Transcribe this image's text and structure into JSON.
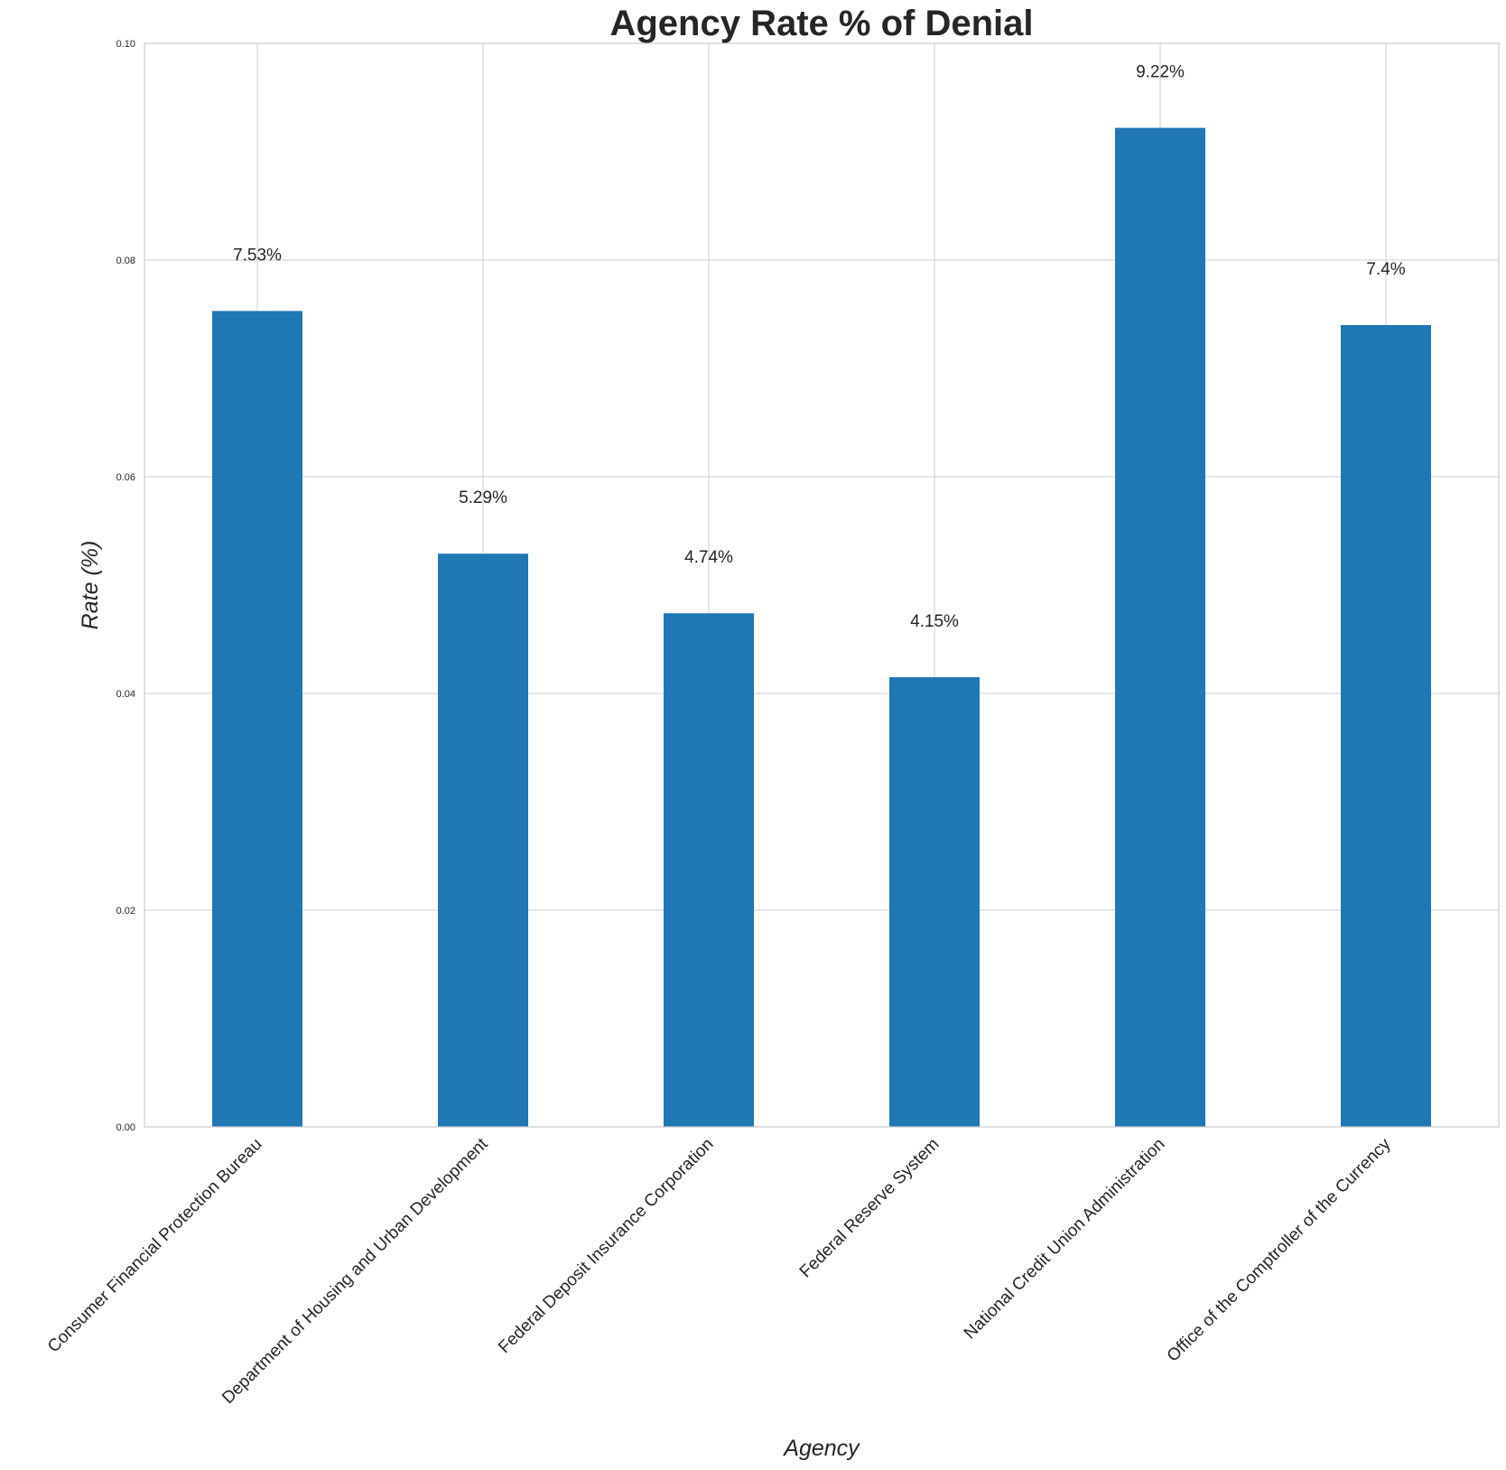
{
  "chart_data": {
    "type": "bar",
    "title": "Agency Rate % of Denial",
    "xlabel": "Agency",
    "ylabel": "Rate (%)",
    "categories": [
      "Consumer Financial Protection Bureau",
      "Department of Housing and Urban Development",
      "Federal Deposit Insurance Corporation",
      "Federal Reserve System",
      "National Credit Union Administration",
      "Office of the Comptroller of the Currency"
    ],
    "values": [
      0.0753,
      0.0529,
      0.0474,
      0.0415,
      0.0922,
      0.074
    ],
    "data_labels": [
      "7.53%",
      "5.29%",
      "4.74%",
      "4.15%",
      "9.22%",
      "7.4%"
    ],
    "ylim": [
      0,
      0.1
    ],
    "yticks": [
      "0.00",
      "0.02",
      "0.04",
      "0.06",
      "0.08",
      "0.10"
    ],
    "grid": true,
    "bar_color": "#1f77b4"
  }
}
